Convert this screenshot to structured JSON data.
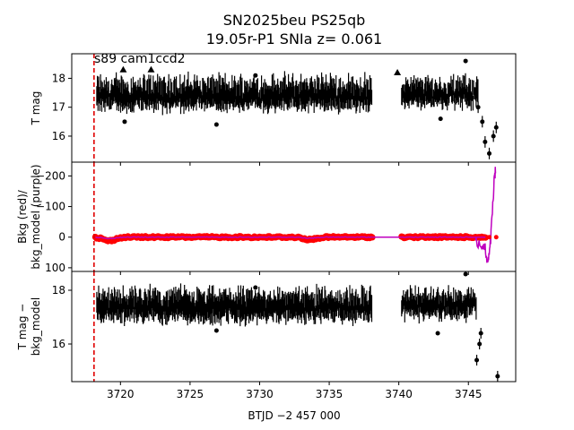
{
  "chart_data": {
    "type": "scatter",
    "title_line1": "SN2025beu  PS25qb",
    "title_line2": "19.05r-P1 SNIa z= 0.061",
    "xlabel": "BTJD −2 457 000",
    "xlim": [
      3716.5,
      3748.4
    ],
    "xticks": [
      "3720",
      "3725",
      "3730",
      "3735",
      "3740",
      "3745"
    ],
    "xtick_values": [
      3720,
      3725,
      3730,
      3735,
      3740,
      3745
    ],
    "reference_line_x": 3718.1,
    "reference_line_color": "#e00000",
    "annotation": "s89 cam1ccd2",
    "colors": {
      "lightcurve": "#000000",
      "bkg_data": "#ff0000",
      "bkg_model": "#bf00bf"
    },
    "panels": [
      {
        "ylabel_lines": [
          "T mag"
        ],
        "ylim": [
          18.85,
          15.1
        ],
        "yticks": [
          "16",
          "17",
          "18"
        ],
        "ytick_values": [
          16,
          17,
          18
        ],
        "segments": [
          {
            "x_range": [
              3718.3,
              3738.1
            ],
            "band": [
              16.8,
              18.3
            ],
            "level": 17.3
          },
          {
            "x_range": [
              3740.2,
              3745.7
            ],
            "band": [
              16.9,
              18.2
            ],
            "level": 17.4
          }
        ],
        "rise": {
          "x": [
            3745.7,
            3746.0,
            3746.2,
            3746.5,
            3746.8,
            3747.0
          ],
          "y": [
            17.0,
            16.5,
            15.8,
            15.4,
            16.0,
            16.3
          ]
        },
        "upper_limits": {
          "x": [
            3720.2,
            3722.2,
            3739.9
          ],
          "y": [
            18.3,
            18.3,
            18.2
          ]
        },
        "outliers": {
          "x": [
            3720.3,
            3726.9,
            3729.7,
            3743.0,
            3744.8
          ],
          "y": [
            16.5,
            16.4,
            18.1,
            16.6,
            18.6
          ]
        }
      },
      {
        "ylabel_lines": [
          "Bkg (red)/",
          "bkg_model (purple)"
        ],
        "ylim": [
          -245,
          112
        ],
        "yticks": [
          "100",
          "0",
          "−100",
          "−200"
        ],
        "ytick_values": [
          100,
          0,
          -100,
          -200
        ],
        "bkg_segments": [
          {
            "x_range": [
              3718.2,
              3738.1
            ],
            "level": 0,
            "bumps": [
              [
                3719.2,
                12
              ],
              [
                3733.6,
                8
              ]
            ]
          },
          {
            "x_range": [
              3740.2,
              3746.3
            ],
            "level": 0,
            "bumps": []
          }
        ],
        "model_tail": {
          "x": [
            3745.5,
            3745.9,
            3746.2,
            3746.4,
            3746.55,
            3746.7,
            3746.85,
            3746.95
          ],
          "y": [
            10,
            30,
            40,
            90,
            40,
            -60,
            -180,
            -220
          ]
        },
        "bkg_tail": {
          "x": [
            3746.5,
            3747.0
          ],
          "y": [
            0,
            0
          ]
        }
      },
      {
        "ylabel_lines": [
          "T mag −",
          "bkg_model"
        ],
        "ylim": [
          18.7,
          14.6
        ],
        "yticks": [
          "16",
          "18"
        ],
        "ytick_values": [
          16,
          18
        ],
        "segments": [
          {
            "x_range": [
              3718.3,
              3738.1
            ],
            "band": [
              16.7,
              18.3
            ],
            "level": 17.3
          },
          {
            "x_range": [
              3740.2,
              3745.6
            ],
            "band": [
              16.8,
              18.2
            ],
            "level": 17.4
          }
        ],
        "rise": {
          "x": [
            3745.6,
            3745.8,
            3745.9,
            3747.1
          ],
          "y": [
            15.4,
            16.0,
            16.4,
            14.8
          ]
        },
        "outliers": {
          "x": [
            3726.9,
            3729.7,
            3742.8,
            3744.8
          ],
          "y": [
            16.5,
            18.1,
            16.4,
            18.6
          ]
        }
      }
    ]
  }
}
